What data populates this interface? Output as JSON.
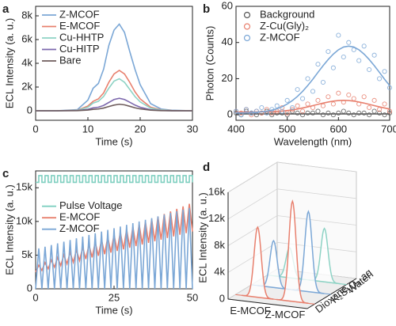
{
  "chart_data": [
    {
      "type": "line",
      "panel": "a",
      "xlabel": "Time (s)",
      "ylabel": "ECL Intensity (a. u.)",
      "xlim": [
        0,
        30
      ],
      "xticks": [
        0,
        10,
        20,
        30
      ],
      "ylim": [
        -800,
        8800
      ],
      "yticks": [
        0,
        {
          "value": 2000,
          "label": "2k"
        },
        {
          "value": 4000,
          "label": "4k"
        },
        {
          "value": 6000,
          "label": "6k"
        },
        {
          "value": 8000,
          "label": "8k"
        }
      ],
      "legend": "upper left",
      "x": [
        0,
        4,
        8,
        10,
        11,
        12,
        13,
        14,
        15,
        16,
        17,
        18,
        19,
        20,
        22,
        24,
        26,
        30
      ],
      "series": [
        {
          "name": "Z-MCOF",
          "color": "#7ba7d6",
          "values": [
            0,
            0,
            100,
            900,
            1900,
            2300,
            3500,
            5500,
            6800,
            7300,
            6600,
            5000,
            3500,
            2200,
            600,
            150,
            50,
            0
          ]
        },
        {
          "name": "E-MCOF",
          "color": "#e8806e",
          "values": [
            0,
            0,
            50,
            400,
            800,
            1000,
            1500,
            2400,
            3100,
            3400,
            3100,
            2400,
            1600,
            1000,
            300,
            80,
            20,
            0
          ]
        },
        {
          "name": "Cu-HHTP",
          "color": "#8ed3c5",
          "values": [
            0,
            0,
            40,
            300,
            650,
            800,
            1200,
            1900,
            2500,
            2700,
            2400,
            1800,
            1200,
            750,
            220,
            60,
            15,
            0
          ]
        },
        {
          "name": "Cu-HITP",
          "color": "#7c68ad",
          "values": [
            0,
            0,
            20,
            120,
            250,
            300,
            450,
            700,
            950,
            1050,
            950,
            720,
            480,
            300,
            90,
            25,
            5,
            0
          ]
        },
        {
          "name": "Bare",
          "color": "#6e5c5c",
          "values": [
            0,
            0,
            10,
            60,
            120,
            150,
            230,
            360,
            480,
            550,
            500,
            380,
            250,
            160,
            50,
            15,
            3,
            0
          ]
        }
      ]
    },
    {
      "type": "scatter",
      "panel": "b",
      "xlabel": "Wavelength (nm)",
      "ylabel": "Photon (Counts)",
      "xlim": [
        400,
        700
      ],
      "xticks": [
        400,
        500,
        600,
        700
      ],
      "ylim": [
        -3,
        60
      ],
      "yticks": [
        0,
        20,
        40,
        60
      ],
      "legend": "upper left",
      "x": [
        400,
        410,
        420,
        430,
        440,
        450,
        460,
        470,
        480,
        490,
        500,
        510,
        520,
        530,
        540,
        550,
        560,
        570,
        580,
        590,
        600,
        610,
        620,
        630,
        640,
        650,
        660,
        670,
        680,
        690,
        700
      ],
      "series": [
        {
          "name": "Background",
          "color": "#555555",
          "values": [
            1,
            0,
            2,
            1,
            0,
            1,
            2,
            0,
            1,
            1,
            0,
            2,
            1,
            0,
            1,
            1,
            2,
            0,
            1,
            0,
            1,
            2,
            1,
            0,
            1,
            1,
            0,
            2,
            1,
            0,
            1
          ],
          "fit": [
            0.5,
            0.5,
            0.5,
            0.5,
            0.5,
            0.5,
            0.5,
            0.5,
            0.5,
            0.5,
            0.5,
            0.5,
            0.5,
            0.5,
            0.5,
            0.5,
            0.5,
            0.5,
            0.5,
            0.5,
            0.5,
            0.5,
            0.5,
            0.5,
            0.5,
            0.5,
            0.5,
            0.5,
            0.5,
            0.5,
            0.5
          ]
        },
        {
          "name": "Z-Cu(Gly)₂",
          "color": "#e8806e",
          "values": [
            2,
            1,
            3,
            0,
            2,
            1,
            3,
            1,
            2,
            4,
            1,
            3,
            5,
            2,
            6,
            4,
            8,
            5,
            10,
            6,
            12,
            7,
            11,
            9,
            6,
            10,
            4,
            8,
            3,
            6,
            2
          ],
          "fit": [
            1.5,
            1.5,
            1.5,
            1.5,
            1.6,
            1.6,
            1.7,
            1.8,
            1.9,
            2.1,
            2.4,
            2.7,
            3.2,
            3.8,
            4.4,
            5.1,
            5.8,
            6.5,
            7.1,
            7.6,
            7.9,
            8.0,
            7.9,
            7.6,
            7.1,
            6.5,
            5.8,
            5.1,
            4.4,
            3.8,
            3.2
          ]
        },
        {
          "name": "Z-MCOF",
          "color": "#7ba7d6",
          "values": [
            2,
            0,
            3,
            1,
            2,
            4,
            1,
            3,
            5,
            2,
            8,
            4,
            14,
            9,
            20,
            13,
            28,
            18,
            35,
            26,
            44,
            32,
            40,
            36,
            30,
            38,
            25,
            33,
            20,
            24,
            15
          ],
          "fit": [
            1.0,
            1.1,
            1.1,
            1.2,
            1.4,
            1.7,
            2.0,
            2.6,
            3.4,
            4.5,
            6.0,
            7.9,
            10.2,
            13.0,
            16.2,
            19.7,
            23.5,
            27.2,
            30.6,
            33.6,
            36.0,
            37.5,
            38.0,
            37.5,
            36.0,
            33.6,
            30.6,
            27.2,
            23.5,
            19.7,
            16.2
          ]
        }
      ]
    },
    {
      "type": "line",
      "panel": "c",
      "xlabel": "Time (s)",
      "ylabel": "ECL Intensity (a. u.)",
      "xlim": [
        0,
        50
      ],
      "xticks": [
        0,
        25,
        50
      ],
      "ylim": [
        0,
        17500
      ],
      "yticks": [
        0,
        {
          "value": 5000,
          "label": "5k"
        },
        {
          "value": 10000,
          "label": "10k"
        },
        {
          "value": 15000,
          "label": "15k"
        }
      ],
      "legend": "center left",
      "x": [
        0,
        1,
        2,
        3,
        4,
        5,
        6,
        7,
        8,
        9,
        10,
        11,
        12,
        13,
        14,
        15,
        16,
        17,
        18,
        19,
        20,
        21,
        22,
        23,
        24,
        25,
        26,
        27,
        28,
        29,
        30,
        31,
        32,
        33,
        34,
        35,
        36,
        37,
        38,
        39,
        40,
        41,
        42,
        43,
        44,
        45,
        46,
        47,
        48,
        49,
        50
      ],
      "series": [
        {
          "name": "Pulse Voltage",
          "color": "#7fcfc0",
          "step": true,
          "values": [
            15800,
            16800,
            15800,
            16800,
            15800,
            16800,
            15800,
            16800,
            15800,
            16800,
            15800,
            16800,
            15800,
            16800,
            15800,
            16800,
            15800,
            16800,
            15800,
            16800,
            15800,
            16800,
            15800,
            16800,
            15800,
            16800,
            15800,
            16800,
            15800,
            16800,
            15800,
            16800,
            15800,
            16800,
            15800,
            16800,
            15800,
            16800,
            15800,
            16800,
            15800,
            16800,
            15800,
            16800,
            15800,
            16800,
            15800,
            16800,
            15800,
            16800,
            15800
          ]
        },
        {
          "name": "E-MCOF",
          "color": "#e8806e",
          "values": [
            2500,
            3500,
            2740,
            3880,
            2980,
            4260,
            3220,
            4640,
            3460,
            5020,
            3700,
            5400,
            3940,
            5780,
            4180,
            6160,
            4420,
            6540,
            4660,
            6920,
            4900,
            7300,
            5140,
            7680,
            5380,
            8060,
            5620,
            8440,
            5860,
            8820,
            6100,
            9200,
            6340,
            9580,
            6580,
            9960,
            6820,
            10340,
            7060,
            10720,
            7300,
            11100,
            7540,
            11480,
            7780,
            11860,
            8020,
            12240,
            8260,
            12620,
            8500
          ]
        },
        {
          "name": "Z-MCOF",
          "color": "#7ba7d6",
          "values": [
            0,
            6000,
            0,
            6250,
            0,
            6500,
            0,
            6750,
            0,
            7000,
            0,
            7250,
            0,
            7500,
            0,
            7750,
            0,
            8000,
            0,
            8250,
            0,
            8500,
            0,
            8750,
            0,
            9000,
            0,
            9250,
            0,
            9500,
            0,
            9750,
            0,
            10000,
            0,
            10250,
            0,
            10500,
            0,
            10750,
            0,
            11000,
            0,
            11250,
            0,
            11500,
            0,
            11750,
            0,
            12000,
            0
          ]
        }
      ]
    },
    {
      "type": "waterfall3d",
      "panel": "d",
      "ylabel": "ECL Intensity (a. u.)",
      "categories": [
        "E-MCOF",
        "Z-MCOF"
      ],
      "ylim": [
        0,
        16000
      ],
      "yticks": [
        0,
        {
          "value": 4000,
          "label": "4k"
        },
        {
          "value": 8000,
          "label": "8k"
        },
        {
          "value": 12000,
          "label": "12k"
        },
        {
          "value": 16000,
          "label": "16k"
        }
      ],
      "series": [
        {
          "name": "Dioxane",
          "color": "#e8806e",
          "values": [
            10500,
            15000
          ]
        },
        {
          "name": "K₂S₂O₈ aq",
          "color": "#7ba7d6",
          "values": [
            7000,
            12000
          ]
        },
        {
          "name": "Water",
          "color": "#8ed3c5",
          "values": [
            4500,
            8000
          ]
        }
      ]
    }
  ]
}
